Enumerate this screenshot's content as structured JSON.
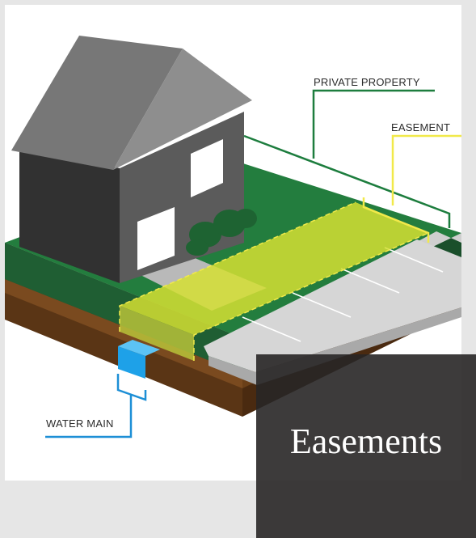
{
  "callouts": {
    "private_property": "PRIVATE PROPERTY",
    "easement": "EASEMENT",
    "water_main": "WATER MAIN"
  },
  "panel": {
    "title": "Easements"
  },
  "colors": {
    "house_roof": "#777777",
    "house_wall": "#313131",
    "grass": "#237d3e",
    "grass_side": "#1f5e33",
    "soil": "#5a3515",
    "easement_fill": "#d5df33",
    "easement_line": "#f1e94a",
    "private_line": "#1d7d3e",
    "water_line": "#1d8fd6",
    "pipe": "#1ea1e8",
    "sidewalk": "#d4d4d4",
    "panel_bg": "#2a2727"
  }
}
